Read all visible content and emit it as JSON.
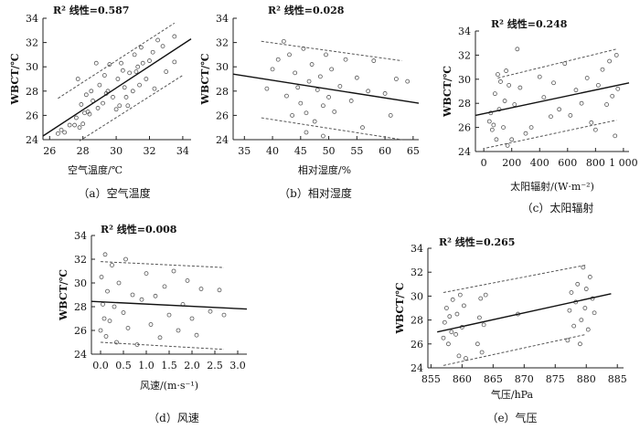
{
  "chart_data": [
    {
      "type": "scatter",
      "caption": "（a）空气温度",
      "xlabel": "空气温度/℃",
      "ylabel": "WBCT/℃",
      "r2_label": "R² 线性=0.587",
      "xlim": [
        25.6,
        34.5
      ],
      "ylim": [
        24,
        34
      ],
      "xticks": [
        26,
        28,
        30,
        32,
        34
      ],
      "yticks": [
        24,
        26,
        28,
        30,
        32,
        34
      ],
      "fit": [
        [
          25.6,
          24.3
        ],
        [
          34.5,
          32.3
        ]
      ],
      "upper": [
        [
          26.5,
          27.4
        ],
        [
          33.5,
          33.6
        ]
      ],
      "lower": [
        [
          27.8,
          23.9
        ],
        [
          34.0,
          29.3
        ]
      ],
      "points": [
        [
          26.5,
          24.5
        ],
        [
          26.7,
          24.8
        ],
        [
          26.9,
          24.6
        ],
        [
          27.2,
          25.2
        ],
        [
          27.5,
          25.2
        ],
        [
          27.6,
          25.8
        ],
        [
          27.7,
          29.0
        ],
        [
          27.8,
          25.0
        ],
        [
          27.9,
          26.9
        ],
        [
          28.0,
          25.3
        ],
        [
          28.1,
          26.2
        ],
        [
          28.2,
          27.7
        ],
        [
          28.4,
          26.1
        ],
        [
          28.5,
          28.0
        ],
        [
          28.6,
          27.2
        ],
        [
          28.8,
          30.3
        ],
        [
          28.9,
          26.6
        ],
        [
          29.0,
          28.5
        ],
        [
          29.2,
          27.0
        ],
        [
          29.3,
          29.3
        ],
        [
          29.5,
          28.0
        ],
        [
          29.6,
          30.2
        ],
        [
          29.8,
          27.5
        ],
        [
          30.0,
          26.5
        ],
        [
          30.1,
          29.0
        ],
        [
          30.2,
          26.8
        ],
        [
          30.3,
          30.3
        ],
        [
          30.5,
          28.3
        ],
        [
          30.6,
          27.5
        ],
        [
          30.8,
          29.5
        ],
        [
          31.0,
          28.0
        ],
        [
          31.1,
          31.0
        ],
        [
          31.2,
          29.6
        ],
        [
          31.4,
          28.5
        ],
        [
          31.5,
          31.6
        ],
        [
          31.6,
          30.3
        ],
        [
          31.8,
          29.0
        ],
        [
          32.0,
          30.5
        ],
        [
          32.2,
          31.2
        ],
        [
          32.3,
          28.2
        ],
        [
          32.5,
          32.2
        ],
        [
          32.8,
          31.7
        ],
        [
          33.0,
          29.6
        ],
        [
          33.5,
          32.5
        ],
        [
          33.5,
          30.4
        ],
        [
          29.4,
          27.8
        ],
        [
          30.4,
          29.7
        ],
        [
          31.3,
          30.0
        ],
        [
          28.3,
          26.3
        ],
        [
          30.7,
          26.8
        ]
      ]
    },
    {
      "type": "scatter",
      "caption": "（b）相对湿度",
      "xlabel": "相对湿度/%",
      "ylabel": "WBCT/℃",
      "r2_label": "R² 线性=0.028",
      "xlim": [
        33,
        66
      ],
      "ylim": [
        24,
        34
      ],
      "xticks": [
        35,
        40,
        45,
        50,
        55,
        60,
        65
      ],
      "yticks": [
        24,
        26,
        28,
        30,
        32,
        34
      ],
      "fit": [
        [
          33,
          29.4
        ],
        [
          66,
          27.0
        ]
      ],
      "upper": [
        [
          38,
          32.1
        ],
        [
          63,
          30.5
        ]
      ],
      "lower": [
        [
          38,
          25.8
        ],
        [
          63,
          24.0
        ]
      ],
      "points": [
        [
          39,
          28.2
        ],
        [
          40,
          29.8
        ],
        [
          41,
          30.6
        ],
        [
          42,
          32.1
        ],
        [
          42.5,
          27.6
        ],
        [
          43,
          31.0
        ],
        [
          43.5,
          26.0
        ],
        [
          44,
          29.5
        ],
        [
          44.5,
          28.3
        ],
        [
          45,
          27.0
        ],
        [
          45.5,
          31.5
        ],
        [
          46,
          26.2
        ],
        [
          46.5,
          28.8
        ],
        [
          47,
          30.2
        ],
        [
          47.5,
          25.5
        ],
        [
          48,
          28.1
        ],
        [
          48.5,
          29.2
        ],
        [
          49,
          26.8
        ],
        [
          49.5,
          31.0
        ],
        [
          50,
          27.5
        ],
        [
          50.5,
          29.8
        ],
        [
          51,
          26.3
        ],
        [
          52,
          28.4
        ],
        [
          53,
          30.6
        ],
        [
          54,
          27.2
        ],
        [
          55,
          29.1
        ],
        [
          56,
          25.0
        ],
        [
          57,
          28.0
        ],
        [
          58,
          30.5
        ],
        [
          60,
          27.8
        ],
        [
          61,
          26.0
        ],
        [
          62,
          29.0
        ],
        [
          64,
          28.8
        ],
        [
          46,
          24.6
        ],
        [
          49,
          24.3
        ]
      ]
    },
    {
      "type": "scatter",
      "caption": "（c）太阳辐射",
      "xlabel": "太阳辐射/(W·m⁻²)",
      "ylabel": "WBCT/℃",
      "r2_label": "R² 线性=0.248",
      "xlim": [
        -60,
        1040
      ],
      "ylim": [
        24,
        34
      ],
      "xticks": [
        0,
        200,
        400,
        600,
        800,
        1000
      ],
      "xtick_labels": [
        "0",
        "200",
        "400",
        "600",
        "800",
        "1 000"
      ],
      "yticks": [
        24,
        26,
        28,
        30,
        32,
        34
      ],
      "fit": [
        [
          -60,
          27.0
        ],
        [
          1040,
          29.7
        ]
      ],
      "upper": [
        [
          100,
          30.1
        ],
        [
          950,
          32.5
        ]
      ],
      "lower": [
        [
          20,
          24.3
        ],
        [
          950,
          26.6
        ]
      ],
      "points": [
        [
          40,
          26.5
        ],
        [
          50,
          27.2
        ],
        [
          60,
          25.8
        ],
        [
          70,
          26.2
        ],
        [
          80,
          28.8
        ],
        [
          90,
          25.0
        ],
        [
          100,
          30.4
        ],
        [
          110,
          27.5
        ],
        [
          120,
          29.8
        ],
        [
          140,
          26.0
        ],
        [
          150,
          28.2
        ],
        [
          160,
          30.7
        ],
        [
          170,
          24.5
        ],
        [
          180,
          29.5
        ],
        [
          200,
          25.0
        ],
        [
          220,
          27.9
        ],
        [
          240,
          32.5
        ],
        [
          260,
          29.3
        ],
        [
          300,
          25.5
        ],
        [
          340,
          26.0
        ],
        [
          400,
          30.2
        ],
        [
          430,
          28.5
        ],
        [
          480,
          26.9
        ],
        [
          500,
          29.7
        ],
        [
          540,
          27.5
        ],
        [
          580,
          31.3
        ],
        [
          620,
          27.0
        ],
        [
          660,
          29.1
        ],
        [
          700,
          28.0
        ],
        [
          740,
          30.1
        ],
        [
          770,
          26.4
        ],
        [
          800,
          25.8
        ],
        [
          820,
          29.5
        ],
        [
          850,
          30.8
        ],
        [
          880,
          27.9
        ],
        [
          900,
          31.5
        ],
        [
          920,
          28.6
        ],
        [
          940,
          25.3
        ],
        [
          950,
          32.0
        ],
        [
          960,
          29.2
        ]
      ]
    },
    {
      "type": "scatter",
      "caption": "（d）风速",
      "xlabel": "风速/(m·s⁻¹)",
      "ylabel": "WBCT/℃",
      "r2_label": "R² 线性=0.008",
      "xlim": [
        -0.2,
        3.2
      ],
      "ylim": [
        24,
        34
      ],
      "xticks": [
        0,
        0.5,
        1,
        1.5,
        2,
        2.5,
        3
      ],
      "xtick_labels": [
        "0.0",
        "0.5",
        "1.0",
        "1.5",
        "2.0",
        "2.5",
        "3.0"
      ],
      "yticks": [
        24,
        26,
        28,
        30,
        32,
        34
      ],
      "fit": [
        [
          -0.2,
          28.45
        ],
        [
          3.2,
          27.8
        ]
      ],
      "upper": [
        [
          0,
          31.8
        ],
        [
          2.7,
          31.3
        ]
      ],
      "lower": [
        [
          0,
          25.0
        ],
        [
          2.7,
          24.4
        ]
      ],
      "points": [
        [
          0,
          26.0
        ],
        [
          0.02,
          30.5
        ],
        [
          0.05,
          28.2
        ],
        [
          0.08,
          27.0
        ],
        [
          0.1,
          32.4
        ],
        [
          0.12,
          25.5
        ],
        [
          0.15,
          29.3
        ],
        [
          0.2,
          26.8
        ],
        [
          0.25,
          31.5
        ],
        [
          0.3,
          28.0
        ],
        [
          0.35,
          25.0
        ],
        [
          0.4,
          30.0
        ],
        [
          0.5,
          27.5
        ],
        [
          0.55,
          32.0
        ],
        [
          0.6,
          26.2
        ],
        [
          0.7,
          29.0
        ],
        [
          0.8,
          24.8
        ],
        [
          0.9,
          28.6
        ],
        [
          1.0,
          30.8
        ],
        [
          1.1,
          26.5
        ],
        [
          1.2,
          28.9
        ],
        [
          1.3,
          25.4
        ],
        [
          1.4,
          29.7
        ],
        [
          1.5,
          27.3
        ],
        [
          1.6,
          31.0
        ],
        [
          1.7,
          26.0
        ],
        [
          1.8,
          28.2
        ],
        [
          1.9,
          30.2
        ],
        [
          2.0,
          27.0
        ],
        [
          2.1,
          25.6
        ],
        [
          2.2,
          29.5
        ],
        [
          2.4,
          27.6
        ],
        [
          2.6,
          29.4
        ],
        [
          2.7,
          27.3
        ]
      ]
    },
    {
      "type": "scatter",
      "caption": "（e）气压",
      "xlabel": "气压/hPa",
      "ylabel": "WBCT/℃",
      "r2_label": "R² 线性=0.265",
      "xlim": [
        854.5,
        886
      ],
      "ylim": [
        24,
        34
      ],
      "xticks": [
        855,
        860,
        865,
        870,
        875,
        880,
        885
      ],
      "yticks": [
        24,
        26,
        28,
        30,
        32,
        34
      ],
      "fit": [
        [
          856,
          27.0
        ],
        [
          884,
          30.2
        ]
      ],
      "upper": [
        [
          857,
          30.3
        ],
        [
          880,
          32.6
        ]
      ],
      "lower": [
        [
          857,
          24.2
        ],
        [
          880,
          26.8
        ]
      ],
      "points": [
        [
          857,
          26.5
        ],
        [
          857.2,
          27.8
        ],
        [
          857.5,
          29.0
        ],
        [
          857.8,
          26.0
        ],
        [
          858,
          28.3
        ],
        [
          858.3,
          27.0
        ],
        [
          858.5,
          29.7
        ],
        [
          859,
          26.8
        ],
        [
          859.2,
          28.5
        ],
        [
          859.5,
          25.0
        ],
        [
          859.7,
          30.1
        ],
        [
          860,
          27.4
        ],
        [
          860.3,
          29.2
        ],
        [
          860.6,
          24.8
        ],
        [
          862.5,
          26.0
        ],
        [
          862.8,
          28.2
        ],
        [
          863,
          29.8
        ],
        [
          863.2,
          25.3
        ],
        [
          863.5,
          27.6
        ],
        [
          863.8,
          30.1
        ],
        [
          869,
          28.5
        ],
        [
          877,
          26.3
        ],
        [
          877.3,
          28.8
        ],
        [
          877.6,
          30.3
        ],
        [
          878,
          27.5
        ],
        [
          878.3,
          29.5
        ],
        [
          878.6,
          31.0
        ],
        [
          879,
          26.0
        ],
        [
          879.2,
          28.0
        ],
        [
          879.5,
          32.4
        ],
        [
          879.8,
          29.0
        ],
        [
          880,
          30.6
        ],
        [
          880.3,
          27.2
        ],
        [
          880.6,
          31.6
        ],
        [
          881,
          29.8
        ],
        [
          881.3,
          28.6
        ]
      ]
    }
  ]
}
